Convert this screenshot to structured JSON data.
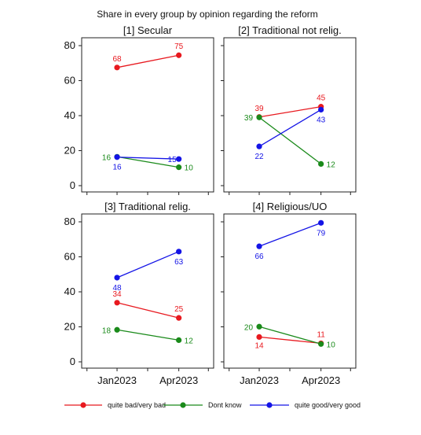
{
  "chart_data": {
    "type": "line",
    "title": "Share in every group by opinion regarding the reform",
    "x": [
      "Jan2023",
      "Apr2023"
    ],
    "ylim": [
      0,
      80
    ],
    "yticks": [
      0,
      20,
      40,
      60,
      80
    ],
    "grid": false,
    "legend_position": "bottom",
    "series_styles": [
      {
        "key": "bad",
        "name": "quite bad/very bad",
        "color": "#e8191f"
      },
      {
        "key": "dk",
        "name": "Dont know",
        "color": "#1a8a1a"
      },
      {
        "key": "good",
        "name": "quite good/very good",
        "color": "#1414e6"
      }
    ],
    "panels": [
      {
        "title": "[1] Secular",
        "series": [
          {
            "key": "bad",
            "values": [
              67.5,
              74.5
            ],
            "labels": [
              "68",
              "75"
            ]
          },
          {
            "key": "dk",
            "values": [
              16.5,
              10.5
            ],
            "labels": [
              "16",
              "10"
            ]
          },
          {
            "key": "good",
            "values": [
              16.3,
              15.2
            ],
            "labels": [
              "16",
              "15"
            ]
          }
        ]
      },
      {
        "title": "[2] Traditional not relig.",
        "series": [
          {
            "key": "bad",
            "values": [
              39.2,
              45.1
            ],
            "labels": [
              "39",
              "45"
            ]
          },
          {
            "key": "dk",
            "values": [
              39.0,
              12.4
            ],
            "labels": [
              "39",
              "12"
            ]
          },
          {
            "key": "good",
            "values": [
              22.4,
              43.4
            ],
            "labels": [
              "22",
              "43"
            ]
          }
        ]
      },
      {
        "title": "[3] Traditional relig.",
        "series": [
          {
            "key": "bad",
            "values": [
              33.8,
              25.1
            ],
            "labels": [
              "34",
              "25"
            ]
          },
          {
            "key": "dk",
            "values": [
              18.3,
              12.4
            ],
            "labels": [
              "18",
              "12"
            ]
          },
          {
            "key": "good",
            "values": [
              48.1,
              63.0
            ],
            "labels": [
              "48",
              "63"
            ]
          }
        ]
      },
      {
        "title": "[4] Religious/UO",
        "series": [
          {
            "key": "bad",
            "values": [
              14.2,
              10.6
            ],
            "labels": [
              "14",
              "11"
            ]
          },
          {
            "key": "dk",
            "values": [
              20.1,
              10.2
            ],
            "labels": [
              "20",
              "10"
            ]
          },
          {
            "key": "good",
            "values": [
              66.0,
              79.4
            ],
            "labels": [
              "66",
              "79"
            ]
          }
        ]
      }
    ]
  }
}
